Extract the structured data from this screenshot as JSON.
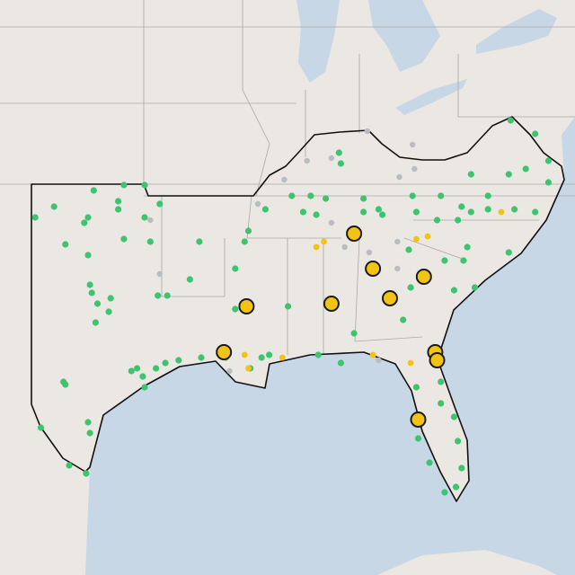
{
  "map": {
    "layers": [
      {
        "color": "#b9bdc1",
        "points": [
          [
            -88.4,
            37.5
          ],
          [
            -87.1,
            37.6
          ],
          [
            -85.2,
            38.6
          ],
          [
            -82.8,
            38.1
          ],
          [
            -83.5,
            36.9
          ],
          [
            -82.7,
            37.2
          ],
          [
            -89.6,
            36.8
          ],
          [
            -91.0,
            35.9
          ],
          [
            -87.1,
            35.2
          ],
          [
            -86.4,
            34.3
          ],
          [
            -85.1,
            34.1
          ],
          [
            -83.6,
            33.5
          ],
          [
            -96.2,
            33.3
          ],
          [
            -96.7,
            35.3
          ],
          [
            -92.5,
            29.7
          ],
          [
            -84.6,
            30.1
          ],
          [
            -83.6,
            34.5
          ]
        ]
      },
      {
        "color": "#3ec46f",
        "points": [
          [
            -99.7,
            36.4
          ],
          [
            -101.8,
            35.8
          ],
          [
            -102.8,
            35.4
          ],
          [
            -100.2,
            35.2
          ],
          [
            -100.0,
            35.4
          ],
          [
            -98.4,
            35.7
          ],
          [
            -98.4,
            36.0
          ],
          [
            -97.0,
            35.4
          ],
          [
            -96.2,
            35.9
          ],
          [
            -98.1,
            36.6
          ],
          [
            -97.0,
            36.6
          ],
          [
            -101.2,
            34.4
          ],
          [
            -100.0,
            34.0
          ],
          [
            -98.1,
            34.6
          ],
          [
            -96.7,
            34.5
          ],
          [
            -94.1,
            34.5
          ],
          [
            -99.9,
            32.9
          ],
          [
            -99.8,
            32.6
          ],
          [
            -98.8,
            32.4
          ],
          [
            -99.5,
            32.2
          ],
          [
            -96.3,
            32.5
          ],
          [
            -95.8,
            32.5
          ],
          [
            -94.6,
            33.1
          ],
          [
            -98.9,
            31.9
          ],
          [
            -99.6,
            31.5
          ],
          [
            -97.4,
            29.8
          ],
          [
            -97.7,
            29.7
          ],
          [
            -97.1,
            29.5
          ],
          [
            -96.4,
            29.8
          ],
          [
            -95.9,
            30.0
          ],
          [
            -95.2,
            30.1
          ],
          [
            -97.0,
            29.1
          ],
          [
            -101.3,
            29.3
          ],
          [
            -101.2,
            29.2
          ],
          [
            -100.0,
            27.8
          ],
          [
            -99.9,
            27.4
          ],
          [
            -102.5,
            27.6
          ],
          [
            -101.0,
            26.2
          ],
          [
            -100.1,
            25.9
          ],
          [
            -92.2,
            33.5
          ],
          [
            -91.5,
            34.9
          ],
          [
            -90.6,
            35.7
          ],
          [
            -91.7,
            34.5
          ],
          [
            -92.2,
            32.0
          ],
          [
            -94.0,
            30.2
          ],
          [
            -92.7,
            30.2
          ],
          [
            -91.4,
            29.8
          ],
          [
            -90.8,
            30.2
          ],
          [
            -90.4,
            30.3
          ],
          [
            -89.4,
            32.1
          ],
          [
            -88.6,
            35.6
          ],
          [
            -87.8,
            30.3
          ],
          [
            -87.9,
            35.5
          ],
          [
            -89.2,
            36.2
          ],
          [
            -88.2,
            36.2
          ],
          [
            -86.6,
            37.4
          ],
          [
            -86.7,
            37.8
          ],
          [
            -85.4,
            35.6
          ],
          [
            -84.6,
            35.7
          ],
          [
            -84.4,
            35.5
          ],
          [
            -82.8,
            36.2
          ],
          [
            -85.4,
            36.1
          ],
          [
            -87.4,
            36.1
          ],
          [
            -82.6,
            35.6
          ],
          [
            -81.5,
            35.3
          ],
          [
            -80.4,
            35.3
          ],
          [
            -79.7,
            35.6
          ],
          [
            -78.8,
            35.7
          ],
          [
            -77.4,
            35.7
          ],
          [
            -76.3,
            35.6
          ],
          [
            -77.7,
            34.1
          ],
          [
            -78.8,
            36.2
          ],
          [
            -80.2,
            35.8
          ],
          [
            -81.3,
            36.2
          ],
          [
            -79.7,
            37.0
          ],
          [
            -77.7,
            37.0
          ],
          [
            -76.8,
            37.2
          ],
          [
            -75.6,
            36.7
          ],
          [
            -75.6,
            37.5
          ],
          [
            -76.3,
            38.5
          ],
          [
            -77.6,
            39.0
          ],
          [
            -79.9,
            34.3
          ],
          [
            -81.1,
            33.8
          ],
          [
            -80.1,
            33.8
          ],
          [
            -79.5,
            32.8
          ],
          [
            -80.6,
            32.7
          ],
          [
            -83.3,
            31.6
          ],
          [
            -85.9,
            31.1
          ],
          [
            -82.9,
            32.8
          ],
          [
            -83.0,
            34.2
          ],
          [
            -86.6,
            30.0
          ],
          [
            -82.6,
            29.1
          ],
          [
            -81.3,
            29.3
          ],
          [
            -80.6,
            28.0
          ],
          [
            -82.5,
            27.2
          ],
          [
            -81.9,
            26.3
          ],
          [
            -80.4,
            27.1
          ],
          [
            -80.2,
            26.1
          ],
          [
            -80.5,
            25.4
          ],
          [
            -81.1,
            25.2
          ],
          [
            -81.3,
            28.5
          ]
        ]
      },
      {
        "color": "#f3c313",
        "points": [
          [
            -87.9,
            34.3
          ],
          [
            -87.5,
            34.5
          ],
          [
            -82.6,
            34.6
          ],
          [
            -82.0,
            34.7
          ],
          [
            -78.1,
            35.6
          ],
          [
            -91.7,
            30.3
          ],
          [
            -89.7,
            30.2
          ],
          [
            -84.9,
            30.3
          ],
          [
            -91.5,
            29.8
          ],
          [
            -82.9,
            30.0
          ]
        ]
      },
      {
        "color": "#f3c313",
        "points": [
          [
            -85.9,
            34.8
          ],
          [
            -84.9,
            33.5
          ],
          [
            -82.2,
            33.2
          ],
          [
            -84.0,
            32.4
          ],
          [
            -87.1,
            32.2
          ],
          [
            -91.6,
            32.1
          ],
          [
            -92.8,
            30.4
          ],
          [
            -81.6,
            30.4
          ],
          [
            -81.5,
            30.1
          ],
          [
            -82.5,
            27.9
          ]
        ]
      }
    ]
  }
}
